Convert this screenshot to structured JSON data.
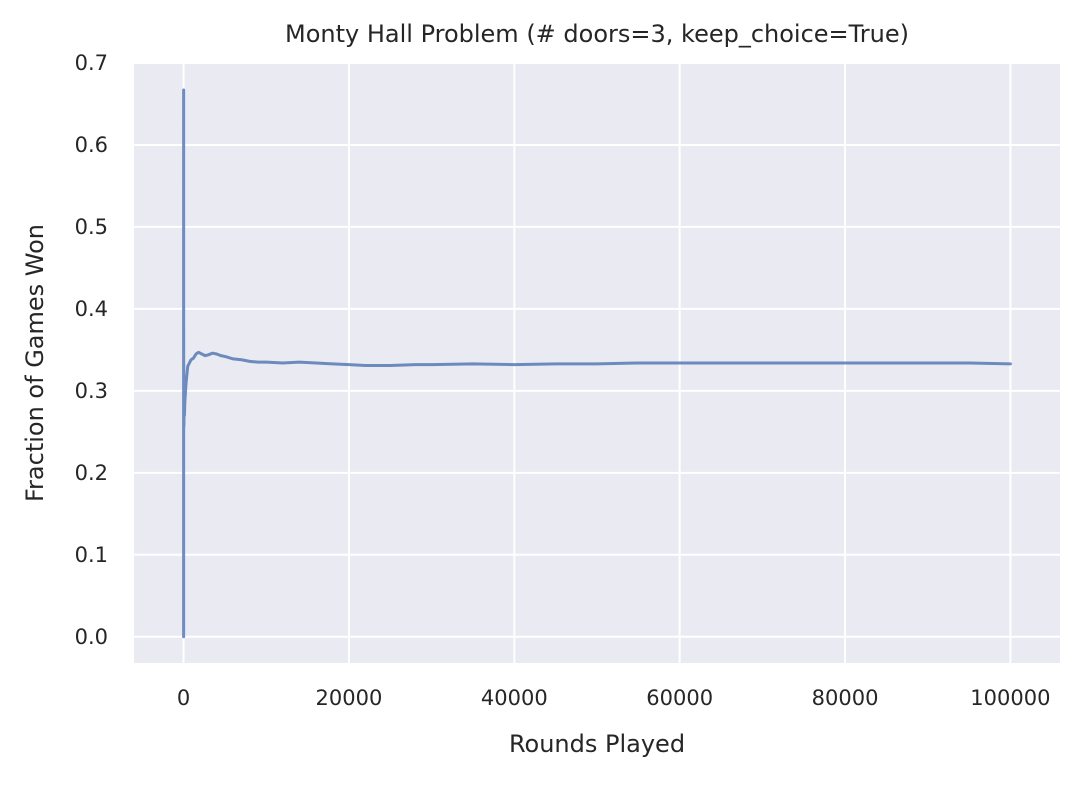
{
  "chart_data": {
    "type": "line",
    "title": "Monty Hall Problem (# doors=3, keep_choice=True)",
    "xlabel": "Rounds Played",
    "ylabel": "Fraction of Games Won",
    "xlim": [
      -6000,
      106000
    ],
    "ylim": [
      -0.032,
      0.7
    ],
    "x_ticks": [
      0,
      20000,
      40000,
      60000,
      80000,
      100000
    ],
    "x_tick_labels": [
      "0",
      "20000",
      "40000",
      "60000",
      "80000",
      "100000"
    ],
    "y_ticks": [
      0.0,
      0.1,
      0.2,
      0.3,
      0.4,
      0.5,
      0.6,
      0.7
    ],
    "y_tick_labels": [
      "0.0",
      "0.1",
      "0.2",
      "0.3",
      "0.4",
      "0.5",
      "0.6",
      "0.7"
    ],
    "grid": true,
    "legend": "none",
    "colors": {
      "background": "#eaeaf2",
      "grid": "#ffffff",
      "line": "#4c72b0"
    },
    "series": [
      {
        "x": [
          1,
          2,
          3,
          5,
          8,
          12,
          20,
          35,
          60,
          100,
          150,
          200,
          300,
          400,
          500,
          700,
          900,
          1200,
          1500,
          1800,
          2200,
          2600,
          3000,
          3500,
          4000,
          4500,
          5000,
          6000,
          7000,
          8000,
          9000,
          10000,
          12000,
          14000,
          16000,
          18000,
          20000,
          22000,
          25000,
          28000,
          30000,
          35000,
          40000,
          45000,
          50000,
          55000,
          60000,
          65000,
          70000,
          75000,
          80000,
          85000,
          90000,
          95000,
          100000
        ],
        "y": [
          0.0,
          0.5,
          0.667,
          0.4,
          0.25,
          0.333,
          0.3,
          0.257,
          0.283,
          0.27,
          0.287,
          0.295,
          0.31,
          0.32,
          0.33,
          0.334,
          0.338,
          0.34,
          0.345,
          0.347,
          0.345,
          0.343,
          0.344,
          0.346,
          0.345,
          0.343,
          0.342,
          0.339,
          0.338,
          0.336,
          0.335,
          0.335,
          0.334,
          0.335,
          0.334,
          0.333,
          0.332,
          0.331,
          0.331,
          0.332,
          0.332,
          0.333,
          0.332,
          0.333,
          0.333,
          0.334,
          0.334,
          0.334,
          0.334,
          0.334,
          0.334,
          0.334,
          0.334,
          0.334,
          0.333
        ]
      }
    ]
  }
}
